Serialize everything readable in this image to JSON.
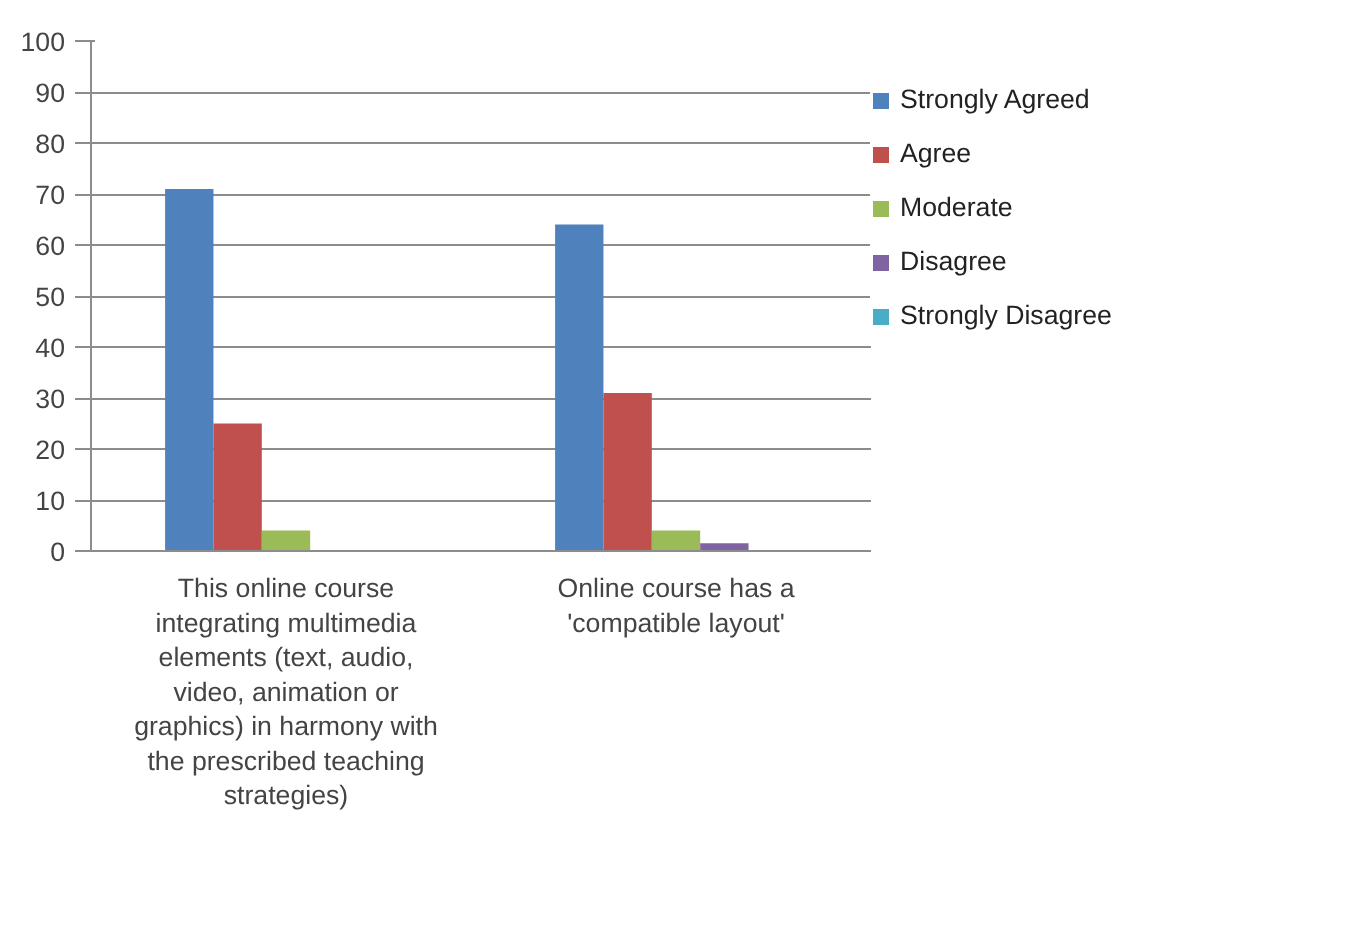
{
  "chart_data": {
    "type": "bar",
    "categories": [
      "This online course integrating multimedia elements (text, audio, video, animation or graphics) in harmony with the prescribed teaching strategies)",
      "Online course has a 'compatible layout'"
    ],
    "series": [
      {
        "name": "Strongly Agreed",
        "color": "#4f81bd",
        "values": [
          71,
          64
        ]
      },
      {
        "name": "Agree",
        "color": "#c0504d",
        "values": [
          25,
          31
        ]
      },
      {
        "name": "Moderate",
        "color": "#9bbb59",
        "values": [
          4,
          4
        ]
      },
      {
        "name": "Disagree",
        "color": "#8064a2",
        "values": [
          0,
          1.5
        ]
      },
      {
        "name": "Strongly Disagree",
        "color": "#4bacc6",
        "values": [
          0,
          0
        ]
      }
    ],
    "ylim": [
      0,
      100
    ],
    "yticks": [
      0,
      10,
      20,
      30,
      40,
      50,
      60,
      70,
      80,
      90,
      100
    ],
    "grid": "y",
    "legend": "right"
  }
}
